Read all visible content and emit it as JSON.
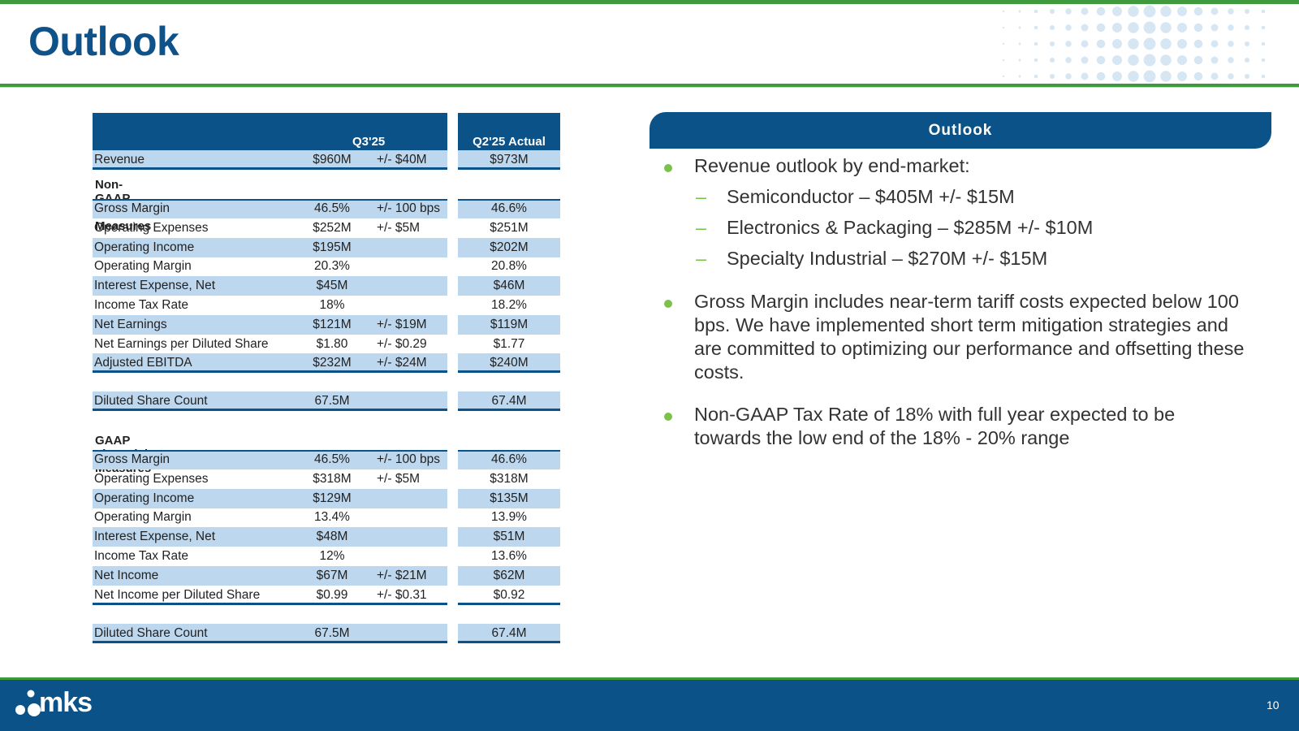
{
  "header": {
    "title": "Outlook"
  },
  "table": {
    "col_q3": "Q3'25",
    "col_q2": "Q2'25 Actual",
    "revenue": {
      "label": "Revenue",
      "value": "$960M",
      "range": "+/- $40M",
      "actual": "$973M"
    },
    "nongaap_title": "Non-GAAP Financial Measures",
    "nongaap": [
      {
        "label": "Gross Margin",
        "value": "46.5%",
        "range": "+/- 100 bps",
        "actual": "46.6%"
      },
      {
        "label": "Operating Expenses",
        "value": "$252M",
        "range": "+/- $5M",
        "actual": "$251M"
      },
      {
        "label": "Operating Income",
        "value": "$195M",
        "range": "",
        "actual": "$202M"
      },
      {
        "label": "Operating Margin",
        "value": "20.3%",
        "range": "",
        "actual": "20.8%"
      },
      {
        "label": "Interest Expense, Net",
        "value": "$45M",
        "range": "",
        "actual": "$46M"
      },
      {
        "label": "Income Tax Rate",
        "value": "18%",
        "range": "",
        "actual": "18.2%"
      },
      {
        "label": "Net Earnings",
        "value": "$121M",
        "range": "+/- $19M",
        "actual": "$119M"
      },
      {
        "label": "Net Earnings per Diluted Share",
        "value": "$1.80",
        "range": "+/- $0.29",
        "actual": "$1.77"
      },
      {
        "label": "Adjusted EBITDA",
        "value": "$232M",
        "range": "+/- $24M",
        "actual": "$240M"
      }
    ],
    "nongaap_shares": {
      "label": "Diluted Share Count",
      "value": "67.5M",
      "range": "",
      "actual": "67.4M"
    },
    "gaap_title": "GAAP Financial Measures",
    "gaap": [
      {
        "label": "Gross Margin",
        "value": "46.5%",
        "range": "+/- 100 bps",
        "actual": "46.6%"
      },
      {
        "label": "Operating Expenses",
        "value": "$318M",
        "range": "+/- $5M",
        "actual": "$318M"
      },
      {
        "label": "Operating Income",
        "value": "$129M",
        "range": "",
        "actual": "$135M"
      },
      {
        "label": "Operating Margin",
        "value": "13.4%",
        "range": "",
        "actual": "13.9%"
      },
      {
        "label": "Interest Expense, Net",
        "value": "$48M",
        "range": "",
        "actual": "$51M"
      },
      {
        "label": "Income Tax Rate",
        "value": "12%",
        "range": "",
        "actual": "13.6%"
      },
      {
        "label": "Net Income",
        "value": "$67M",
        "range": "+/- $21M",
        "actual": "$62M"
      },
      {
        "label": "Net Income per Diluted Share",
        "value": "$0.99",
        "range": "+/- $0.31",
        "actual": "$0.92"
      }
    ],
    "gaap_shares": {
      "label": "Diluted Share Count",
      "value": "67.5M",
      "range": "",
      "actual": "67.4M"
    }
  },
  "outlook": {
    "heading": "Outlook",
    "bullet1": "Revenue outlook by end-market:",
    "sub": [
      "Semiconductor – $405M +/- $15M",
      "Electronics & Packaging – $285M +/- $10M",
      "Specialty Industrial – $270M +/- $15M"
    ],
    "bullet2": "Gross Margin includes near-term tariff costs expected below 100 bps.  We have implemented short term mitigation strategies and are committed to optimizing our performance and offsetting these costs.",
    "bullet3": "Non-GAAP Tax Rate of 18% with full year expected to be towards the low end of the 18% - 20% range"
  },
  "footer": {
    "logo_text": "mks",
    "page_number": "10"
  },
  "colors": {
    "navy": "#0b5289",
    "green": "#3f9a3e",
    "light_blue": "#bdd7ee",
    "bullet_green": "#7cc24a"
  }
}
